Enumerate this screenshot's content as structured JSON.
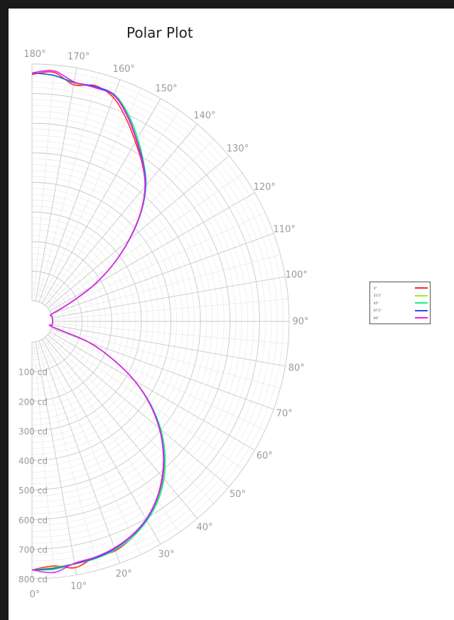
{
  "chart_data": {
    "type": "polar-line",
    "title": "Polar Plot",
    "angle_ticks": [
      "0°",
      "10°",
      "20°",
      "30°",
      "40°",
      "50°",
      "60°",
      "70°",
      "80°",
      "90°",
      "100°",
      "110°",
      "120°",
      "130°",
      "140°",
      "150°",
      "160°",
      "170°",
      "180°"
    ],
    "radial_axis": {
      "unit": "cd",
      "range": [
        0,
        800
      ],
      "ticks": [
        "100 cd",
        "200 cd",
        "300 cd",
        "400 cd",
        "500 cd",
        "600 cd",
        "700 cd",
        "800 cd"
      ]
    },
    "grid": true,
    "legend_position": "right",
    "angles": [
      0,
      5,
      10,
      15,
      20,
      25,
      30,
      35,
      40,
      45,
      50,
      55,
      60,
      65,
      70,
      75,
      80,
      85,
      90,
      95,
      100,
      105,
      110,
      115,
      120,
      125,
      130,
      135,
      140,
      145,
      150,
      155,
      160,
      165,
      170,
      175,
      180
    ],
    "series": [
      {
        "name": "0°",
        "color": "#ff2a2a",
        "values": [
          770,
          760,
          775,
          755,
          755,
          735,
          705,
          665,
          615,
          560,
          495,
          420,
          330,
          230,
          130,
          0,
          0,
          0,
          0,
          0,
          0,
          0,
          0,
          60,
          165,
          265,
          360,
          450,
          525,
          580,
          630,
          685,
          735,
          755,
          742,
          775,
          765
        ]
      },
      {
        "name": "22.5°",
        "color": "#99ee22",
        "values": [
          770,
          765,
          763,
          760,
          748,
          730,
          706,
          670,
          622,
          562,
          495,
          418,
          330,
          230,
          130,
          0,
          0,
          0,
          0,
          0,
          0,
          0,
          0,
          60,
          165,
          265,
          358,
          448,
          525,
          585,
          640,
          700,
          745,
          750,
          748,
          765,
          770
        ]
      },
      {
        "name": "45°",
        "color": "#22ee88",
        "values": [
          770,
          772,
          762,
          760,
          752,
          735,
          708,
          672,
          625,
          566,
          500,
          420,
          330,
          230,
          130,
          0,
          0,
          0,
          0,
          0,
          0,
          0,
          0,
          60,
          165,
          265,
          360,
          452,
          530,
          588,
          645,
          702,
          746,
          752,
          750,
          765,
          770
        ]
      },
      {
        "name": "67.5°",
        "color": "#2255ee",
        "values": [
          770,
          768,
          762,
          758,
          748,
          730,
          704,
          666,
          618,
          560,
          494,
          418,
          330,
          230,
          130,
          0,
          0,
          0,
          0,
          0,
          0,
          0,
          0,
          60,
          165,
          265,
          360,
          452,
          528,
          585,
          638,
          696,
          744,
          752,
          750,
          765,
          770
        ]
      },
      {
        "name": "90°",
        "color": "#ee22ee",
        "values": [
          770,
          782,
          760,
          755,
          745,
          728,
          702,
          664,
          616,
          558,
          492,
          416,
          330,
          230,
          130,
          0,
          0,
          0,
          0,
          0,
          0,
          0,
          0,
          60,
          165,
          265,
          358,
          450,
          525,
          582,
          636,
          694,
          742,
          748,
          752,
          780,
          770
        ]
      }
    ]
  }
}
